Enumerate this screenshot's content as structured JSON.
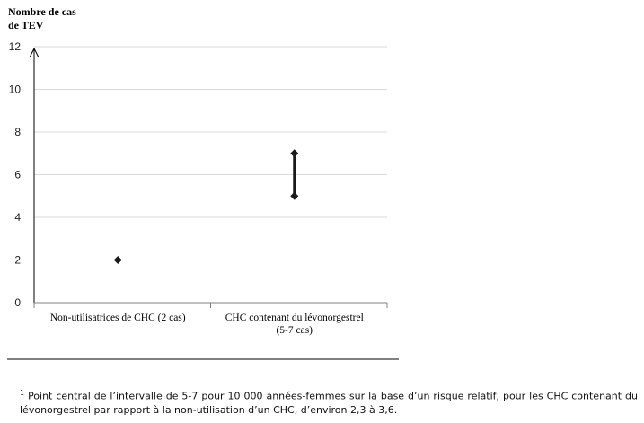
{
  "chart_data": {
    "type": "scatter",
    "ylabel_lines": [
      "Nombre de cas",
      "de TEV"
    ],
    "yticks": [
      0,
      2,
      4,
      6,
      8,
      10,
      12
    ],
    "ylim": [
      0,
      12
    ],
    "grid": true,
    "categories": [
      {
        "label_lines": [
          "Non-utilisatrices de CHC (2 cas)"
        ],
        "values": [
          2
        ]
      },
      {
        "label_lines": [
          "CHC contenant du lévonorgestrel",
          "(5-7 cas)"
        ],
        "values": [
          5,
          7
        ]
      }
    ]
  },
  "footnote": {
    "marker": "1",
    "text": "Point central de l’intervalle de 5-7 pour 10 000 années-femmes sur la base d’un risque relatif, pour les CHC contenant du lévonorgestrel par rapport à la non-utilisation d’un CHC, d’environ 2,3 à 3,6."
  },
  "colors": {
    "grid": "#d9d9d9",
    "axis": "#808080",
    "marker": "#1a1a1a"
  }
}
